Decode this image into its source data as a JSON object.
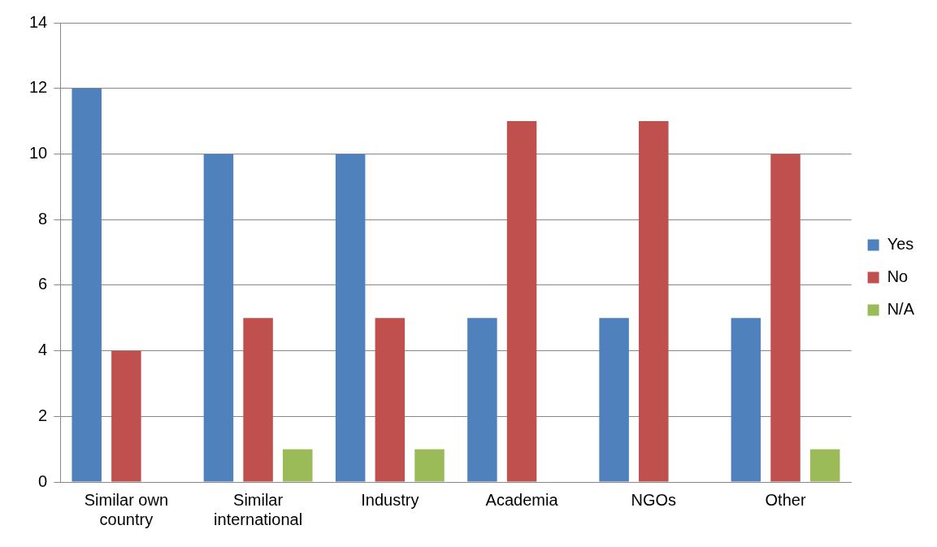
{
  "chart_data": {
    "type": "bar",
    "categories": [
      "Similar own country",
      "Similar international",
      "Industry",
      "Academia",
      "NGOs",
      "Other"
    ],
    "series": [
      {
        "name": "Yes",
        "color": "#4f81bd",
        "values": [
          12,
          10,
          10,
          5,
          5,
          5
        ]
      },
      {
        "name": "No",
        "color": "#c0504d",
        "values": [
          4,
          5,
          5,
          11,
          11,
          10
        ]
      },
      {
        "name": "N/A",
        "color": "#9bbb59",
        "values": [
          0,
          1,
          1,
          0,
          0,
          1
        ]
      }
    ],
    "ylim": [
      0,
      14
    ],
    "yticks": [
      0,
      2,
      4,
      6,
      8,
      10,
      12,
      14
    ],
    "grid": "y",
    "legend": "right"
  }
}
